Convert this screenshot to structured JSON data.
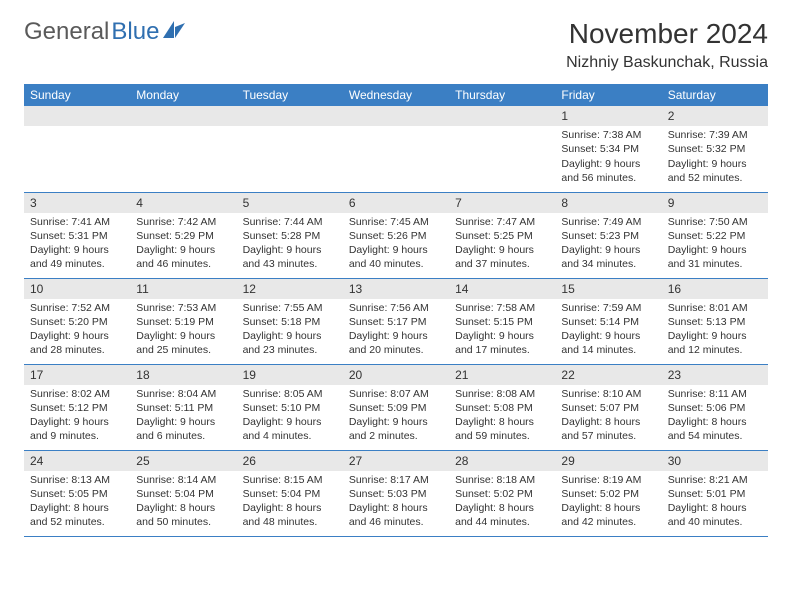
{
  "brand": {
    "part1": "General",
    "part2": "Blue"
  },
  "title": "November 2024",
  "location": "Nizhniy Baskunchak, Russia",
  "header_bg": "#3b7fc4",
  "day_headers": [
    "Sunday",
    "Monday",
    "Tuesday",
    "Wednesday",
    "Thursday",
    "Friday",
    "Saturday"
  ],
  "weeks": [
    [
      {
        "n": "",
        "sr": "",
        "ss": "",
        "dl": ""
      },
      {
        "n": "",
        "sr": "",
        "ss": "",
        "dl": ""
      },
      {
        "n": "",
        "sr": "",
        "ss": "",
        "dl": ""
      },
      {
        "n": "",
        "sr": "",
        "ss": "",
        "dl": ""
      },
      {
        "n": "",
        "sr": "",
        "ss": "",
        "dl": ""
      },
      {
        "n": "1",
        "sr": "Sunrise: 7:38 AM",
        "ss": "Sunset: 5:34 PM",
        "dl": "Daylight: 9 hours and 56 minutes."
      },
      {
        "n": "2",
        "sr": "Sunrise: 7:39 AM",
        "ss": "Sunset: 5:32 PM",
        "dl": "Daylight: 9 hours and 52 minutes."
      }
    ],
    [
      {
        "n": "3",
        "sr": "Sunrise: 7:41 AM",
        "ss": "Sunset: 5:31 PM",
        "dl": "Daylight: 9 hours and 49 minutes."
      },
      {
        "n": "4",
        "sr": "Sunrise: 7:42 AM",
        "ss": "Sunset: 5:29 PM",
        "dl": "Daylight: 9 hours and 46 minutes."
      },
      {
        "n": "5",
        "sr": "Sunrise: 7:44 AM",
        "ss": "Sunset: 5:28 PM",
        "dl": "Daylight: 9 hours and 43 minutes."
      },
      {
        "n": "6",
        "sr": "Sunrise: 7:45 AM",
        "ss": "Sunset: 5:26 PM",
        "dl": "Daylight: 9 hours and 40 minutes."
      },
      {
        "n": "7",
        "sr": "Sunrise: 7:47 AM",
        "ss": "Sunset: 5:25 PM",
        "dl": "Daylight: 9 hours and 37 minutes."
      },
      {
        "n": "8",
        "sr": "Sunrise: 7:49 AM",
        "ss": "Sunset: 5:23 PM",
        "dl": "Daylight: 9 hours and 34 minutes."
      },
      {
        "n": "9",
        "sr": "Sunrise: 7:50 AM",
        "ss": "Sunset: 5:22 PM",
        "dl": "Daylight: 9 hours and 31 minutes."
      }
    ],
    [
      {
        "n": "10",
        "sr": "Sunrise: 7:52 AM",
        "ss": "Sunset: 5:20 PM",
        "dl": "Daylight: 9 hours and 28 minutes."
      },
      {
        "n": "11",
        "sr": "Sunrise: 7:53 AM",
        "ss": "Sunset: 5:19 PM",
        "dl": "Daylight: 9 hours and 25 minutes."
      },
      {
        "n": "12",
        "sr": "Sunrise: 7:55 AM",
        "ss": "Sunset: 5:18 PM",
        "dl": "Daylight: 9 hours and 23 minutes."
      },
      {
        "n": "13",
        "sr": "Sunrise: 7:56 AM",
        "ss": "Sunset: 5:17 PM",
        "dl": "Daylight: 9 hours and 20 minutes."
      },
      {
        "n": "14",
        "sr": "Sunrise: 7:58 AM",
        "ss": "Sunset: 5:15 PM",
        "dl": "Daylight: 9 hours and 17 minutes."
      },
      {
        "n": "15",
        "sr": "Sunrise: 7:59 AM",
        "ss": "Sunset: 5:14 PM",
        "dl": "Daylight: 9 hours and 14 minutes."
      },
      {
        "n": "16",
        "sr": "Sunrise: 8:01 AM",
        "ss": "Sunset: 5:13 PM",
        "dl": "Daylight: 9 hours and 12 minutes."
      }
    ],
    [
      {
        "n": "17",
        "sr": "Sunrise: 8:02 AM",
        "ss": "Sunset: 5:12 PM",
        "dl": "Daylight: 9 hours and 9 minutes."
      },
      {
        "n": "18",
        "sr": "Sunrise: 8:04 AM",
        "ss": "Sunset: 5:11 PM",
        "dl": "Daylight: 9 hours and 6 minutes."
      },
      {
        "n": "19",
        "sr": "Sunrise: 8:05 AM",
        "ss": "Sunset: 5:10 PM",
        "dl": "Daylight: 9 hours and 4 minutes."
      },
      {
        "n": "20",
        "sr": "Sunrise: 8:07 AM",
        "ss": "Sunset: 5:09 PM",
        "dl": "Daylight: 9 hours and 2 minutes."
      },
      {
        "n": "21",
        "sr": "Sunrise: 8:08 AM",
        "ss": "Sunset: 5:08 PM",
        "dl": "Daylight: 8 hours and 59 minutes."
      },
      {
        "n": "22",
        "sr": "Sunrise: 8:10 AM",
        "ss": "Sunset: 5:07 PM",
        "dl": "Daylight: 8 hours and 57 minutes."
      },
      {
        "n": "23",
        "sr": "Sunrise: 8:11 AM",
        "ss": "Sunset: 5:06 PM",
        "dl": "Daylight: 8 hours and 54 minutes."
      }
    ],
    [
      {
        "n": "24",
        "sr": "Sunrise: 8:13 AM",
        "ss": "Sunset: 5:05 PM",
        "dl": "Daylight: 8 hours and 52 minutes."
      },
      {
        "n": "25",
        "sr": "Sunrise: 8:14 AM",
        "ss": "Sunset: 5:04 PM",
        "dl": "Daylight: 8 hours and 50 minutes."
      },
      {
        "n": "26",
        "sr": "Sunrise: 8:15 AM",
        "ss": "Sunset: 5:04 PM",
        "dl": "Daylight: 8 hours and 48 minutes."
      },
      {
        "n": "27",
        "sr": "Sunrise: 8:17 AM",
        "ss": "Sunset: 5:03 PM",
        "dl": "Daylight: 8 hours and 46 minutes."
      },
      {
        "n": "28",
        "sr": "Sunrise: 8:18 AM",
        "ss": "Sunset: 5:02 PM",
        "dl": "Daylight: 8 hours and 44 minutes."
      },
      {
        "n": "29",
        "sr": "Sunrise: 8:19 AM",
        "ss": "Sunset: 5:02 PM",
        "dl": "Daylight: 8 hours and 42 minutes."
      },
      {
        "n": "30",
        "sr": "Sunrise: 8:21 AM",
        "ss": "Sunset: 5:01 PM",
        "dl": "Daylight: 8 hours and 40 minutes."
      }
    ]
  ]
}
